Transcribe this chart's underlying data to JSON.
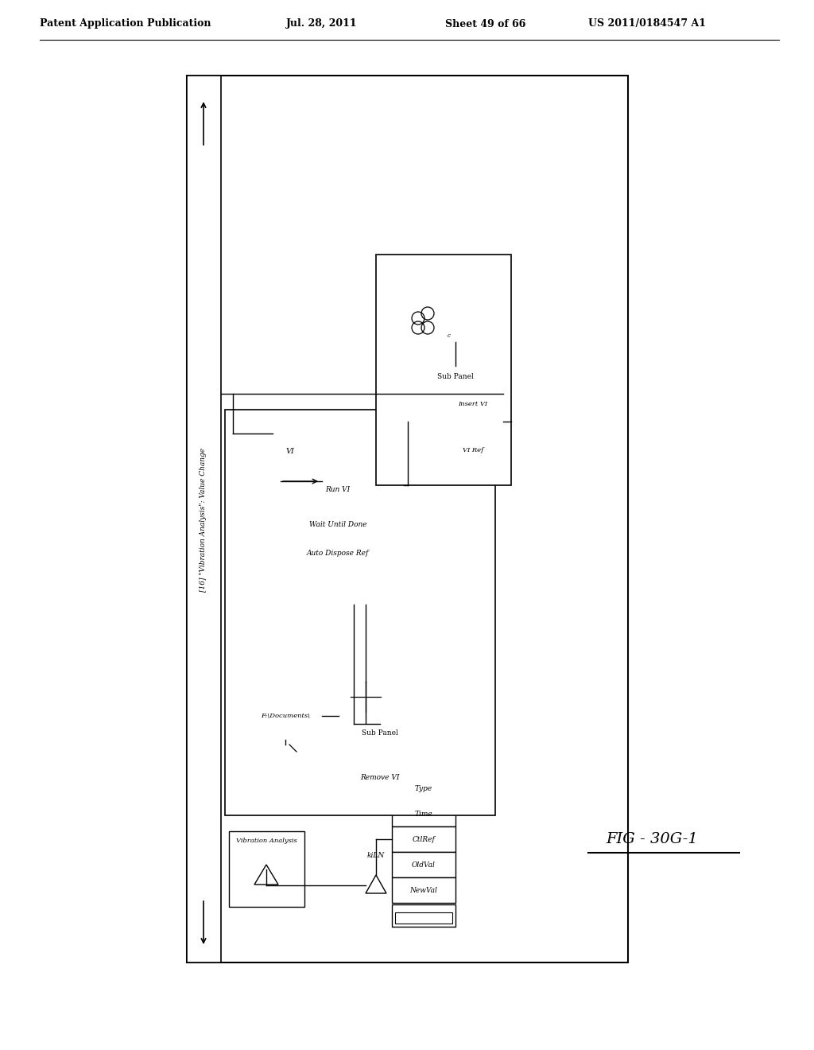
{
  "bg_color": "#ffffff",
  "header_text": "Patent Application Publication",
  "header_date": "Jul. 28, 2011",
  "header_sheet": "Sheet 49 of 66",
  "header_patent": "US 2011/0184547 A1",
  "figure_label": "FIG - 30G-1",
  "event_handler_label": "[16] \"Vibration Analysis\": Value Change",
  "vibration_analysis_label": "Vibration Analysis",
  "fi_documents_label": "F:\\Documents\\",
  "sub_panel_label1": "Sub Panel",
  "remove_vi_label": "Remove VI",
  "kiln_label": "kiLN",
  "cell_labels": [
    "Type",
    "Time",
    "CtlRef",
    "OldVal",
    "NewVal"
  ],
  "vi_label": "VI",
  "run_vi_label": "Run VI",
  "wait_until_done_label": "Wait Until Done",
  "auto_dispose_ref_label": "Auto Dispose Ref",
  "sub_panel_label2": "Sub Panel",
  "insert_vi_label": "Insert VI",
  "vi_ref_label": "VI Ref"
}
